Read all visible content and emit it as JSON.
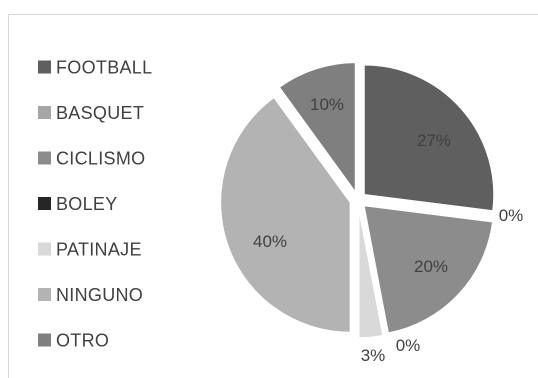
{
  "chart_data": {
    "type": "pie",
    "exploded": true,
    "categories": [
      "FOOTBALL",
      "BASQUET",
      "CICLISMO",
      "BOLEY",
      "PATINAJE",
      "NINGUNO",
      "OTRO"
    ],
    "series": [
      {
        "values": [
          27,
          0,
          20,
          0,
          3,
          40,
          10
        ],
        "labels": [
          "27%",
          "0%",
          "20%",
          "0%",
          "3%",
          "40%",
          "10%"
        ]
      }
    ],
    "legend_position": "left",
    "colors": [
      "#5f5f5f",
      "#a6a6a6",
      "#8c8c8c",
      "#262626",
      "#d9d9d9",
      "#b3b3b3",
      "#7f7f7f"
    ]
  }
}
